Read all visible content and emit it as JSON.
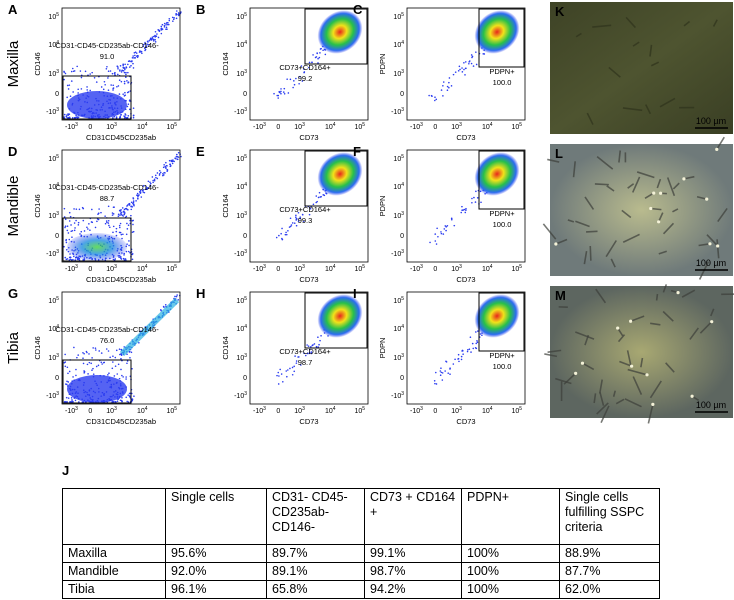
{
  "row_labels": [
    "Maxilla",
    "Mandible",
    "Tibia"
  ],
  "tick_labels": [
    {
      "base": "-10",
      "exp": "3"
    },
    {
      "base": "0"
    },
    {
      "base": "10",
      "exp": "3"
    },
    {
      "base": "10",
      "exp": "4"
    },
    {
      "base": "10",
      "exp": "5"
    }
  ],
  "panels": [
    {
      "letter": "A",
      "x_label": "CD31CD45CD235ab",
      "y_label": "CD146",
      "gate_label": "CD31-CD45-CD235ab-CD146-",
      "gate_value": "91.0"
    },
    {
      "letter": "B",
      "x_label": "CD73",
      "y_label": "CD164",
      "gate_label": "CD73+CD164+",
      "gate_value": "99.2"
    },
    {
      "letter": "C",
      "x_label": "CD73",
      "y_label": "PDPN",
      "gate_label": "PDPN+",
      "gate_value": "100.0"
    },
    {
      "letter": "D",
      "x_label": "CD31CD45CD235ab",
      "y_label": "CD146",
      "gate_label": "CD31-CD45-CD235ab-CD146-",
      "gate_value": "88.7"
    },
    {
      "letter": "E",
      "x_label": "CD73",
      "y_label": "CD164",
      "gate_label": "CD73+CD164+",
      "gate_value": "99.3"
    },
    {
      "letter": "F",
      "x_label": "CD73",
      "y_label": "PDPN",
      "gate_label": "PDPN+",
      "gate_value": "100.0"
    },
    {
      "letter": "G",
      "x_label": "CD31CD45CD235ab",
      "y_label": "CD146",
      "gate_label": "CD31-CD45-CD235ab-CD146-",
      "gate_value": "76.0"
    },
    {
      "letter": "H",
      "x_label": "CD73",
      "y_label": "CD164",
      "gate_label": "CD73+CD164+",
      "gate_value": "98.7"
    },
    {
      "letter": "I",
      "x_label": "CD73",
      "y_label": "PDPN",
      "gate_label": "PDPN+",
      "gate_value": "100.0"
    }
  ],
  "images": [
    {
      "letter": "K",
      "scale_bar": "100 µm"
    },
    {
      "letter": "L",
      "scale_bar": "100 µm"
    },
    {
      "letter": "M",
      "scale_bar": "100 µm"
    }
  ],
  "table": {
    "letter": "J",
    "header": [
      "",
      "Single cells",
      "CD31- CD45- CD235ab- CD146-",
      "CD73 + CD164 +",
      "PDPN+",
      "Single cells fulfilling SSPC criteria"
    ],
    "rows": [
      [
        "Maxilla",
        "95.6%",
        "89.7%",
        "99.1%",
        "100%",
        "88.9%"
      ],
      [
        "Mandible",
        "92.0%",
        "89.1%",
        "98.7%",
        "100%",
        "87.7%"
      ],
      [
        "Tibia",
        "96.1%",
        "65.8%",
        "94.2%",
        "100%",
        "62.0%"
      ]
    ]
  }
}
